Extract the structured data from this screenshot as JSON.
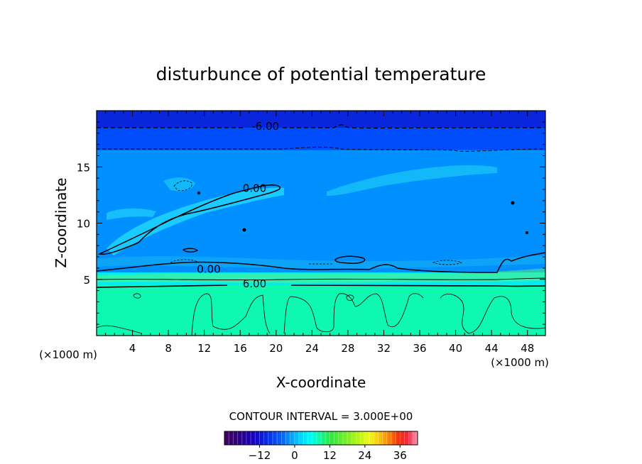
{
  "chart_data": {
    "type": "contour",
    "title": "disturbunce of potential temperature",
    "xlabel": "X-coordinate",
    "ylabel": "Z-coordinate",
    "x_unit": "(×1000 m)",
    "y_unit": "(×1000 m)",
    "xlim": [
      0,
      50
    ],
    "ylim": [
      0,
      20
    ],
    "x_ticks": [
      4,
      8,
      12,
      16,
      20,
      24,
      28,
      32,
      36,
      40,
      44,
      48
    ],
    "y_ticks": [
      5,
      10,
      15
    ],
    "contour_interval_text": "CONTOUR INTERVAL = 3.000E+00",
    "contour_labels": [
      {
        "text": "-6.00",
        "x": 18.8,
        "y": 18.6
      },
      {
        "text": "0.00",
        "x": 17.6,
        "y": 13.1
      },
      {
        "text": "0.00",
        "x": 12.5,
        "y": 5.9
      },
      {
        "text": "6.00",
        "x": 17.6,
        "y": 4.6
      }
    ],
    "colorbar": {
      "min": -24,
      "max": 42,
      "ticks": [
        -12,
        0,
        12,
        24,
        36
      ],
      "tick_labels": [
        "−12",
        "0",
        "12",
        "24",
        "36"
      ]
    },
    "field_levels": [
      {
        "z_from": 0,
        "z_to": 4.5,
        "value": 8
      },
      {
        "z_from": 4.5,
        "z_to": 5.6,
        "value": 4
      },
      {
        "z_from": 5.6,
        "z_to": 16.5,
        "value": -2
      },
      {
        "z_from": 16.5,
        "z_to": 18.5,
        "value": -6
      },
      {
        "z_from": 18.5,
        "z_to": 20,
        "value": -10
      }
    ]
  }
}
